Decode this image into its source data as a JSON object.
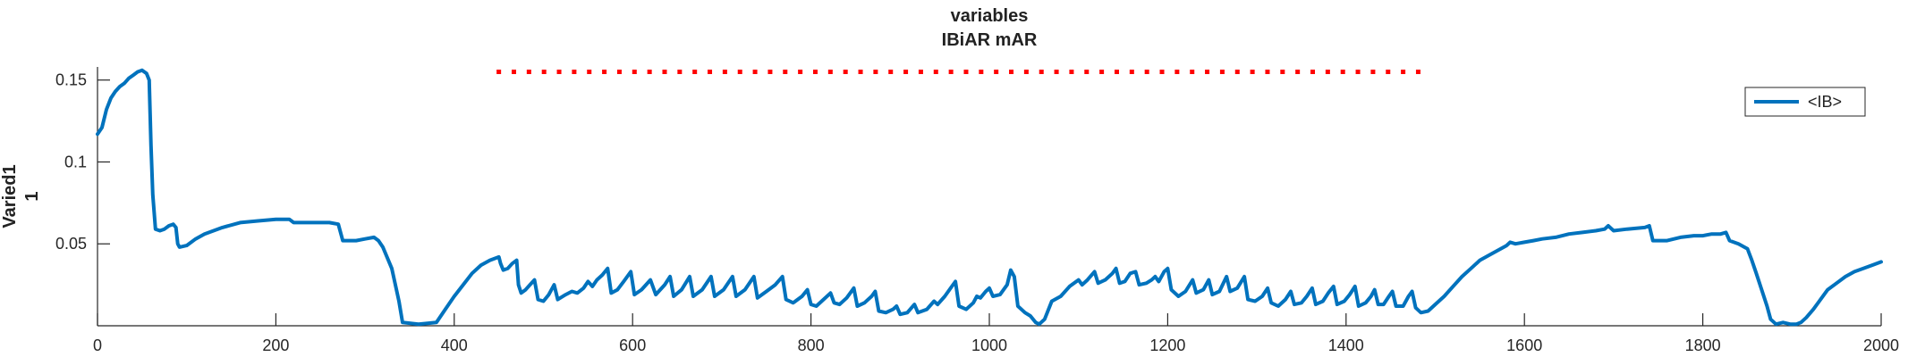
{
  "chart_data": {
    "type": "line",
    "title": [
      "variables",
      "IBiAR mAR"
    ],
    "xlabel": "",
    "ylabel": [
      "Varied1",
      "1"
    ],
    "xlim": [
      0,
      2000
    ],
    "ylim": [
      0,
      0.158
    ],
    "xticks": [
      0,
      200,
      400,
      600,
      800,
      1000,
      1200,
      1400,
      1600,
      1800,
      2000
    ],
    "xtick_labels": [
      "0",
      "200",
      "400",
      "600",
      "800",
      "1000",
      "1200",
      "1400",
      "1600",
      "1800",
      "2000"
    ],
    "yticks": [
      0.05,
      0.1,
      0.15
    ],
    "ytick_labels": [
      "0.05",
      "0.1",
      "0.15"
    ],
    "grid": false,
    "legend_position": "top-right",
    "series": [
      {
        "name": "<IB>",
        "color": "#0072BD",
        "points": [
          [
            0,
            0.117
          ],
          [
            5,
            0.121
          ],
          [
            10,
            0.132
          ],
          [
            15,
            0.139
          ],
          [
            20,
            0.143
          ],
          [
            25,
            0.146
          ],
          [
            30,
            0.148
          ],
          [
            35,
            0.151
          ],
          [
            40,
            0.153
          ],
          [
            45,
            0.155
          ],
          [
            50,
            0.156
          ],
          [
            55,
            0.154
          ],
          [
            58,
            0.15
          ],
          [
            60,
            0.11
          ],
          [
            62,
            0.08
          ],
          [
            65,
            0.059
          ],
          [
            70,
            0.058
          ],
          [
            75,
            0.059
          ],
          [
            80,
            0.061
          ],
          [
            85,
            0.062
          ],
          [
            88,
            0.06
          ],
          [
            90,
            0.05
          ],
          [
            92,
            0.048
          ],
          [
            100,
            0.049
          ],
          [
            110,
            0.053
          ],
          [
            120,
            0.056
          ],
          [
            140,
            0.06
          ],
          [
            160,
            0.063
          ],
          [
            180,
            0.064
          ],
          [
            200,
            0.065
          ],
          [
            215,
            0.065
          ],
          [
            220,
            0.063
          ],
          [
            240,
            0.063
          ],
          [
            260,
            0.063
          ],
          [
            270,
            0.062
          ],
          [
            275,
            0.052
          ],
          [
            290,
            0.052
          ],
          [
            300,
            0.053
          ],
          [
            310,
            0.054
          ],
          [
            315,
            0.052
          ],
          [
            320,
            0.048
          ],
          [
            330,
            0.035
          ],
          [
            338,
            0.015
          ],
          [
            342,
            0.002
          ],
          [
            360,
            0.001
          ],
          [
            380,
            0.002
          ],
          [
            390,
            0.01
          ],
          [
            400,
            0.018
          ],
          [
            410,
            0.025
          ],
          [
            420,
            0.032
          ],
          [
            430,
            0.037
          ],
          [
            440,
            0.04
          ],
          [
            450,
            0.042
          ],
          [
            452,
            0.038
          ],
          [
            455,
            0.034
          ],
          [
            460,
            0.035
          ],
          [
            465,
            0.038
          ],
          [
            470,
            0.04
          ],
          [
            472,
            0.025
          ],
          [
            475,
            0.02
          ],
          [
            480,
            0.022
          ],
          [
            485,
            0.025
          ],
          [
            490,
            0.028
          ],
          [
            494,
            0.016
          ],
          [
            500,
            0.015
          ],
          [
            506,
            0.019
          ],
          [
            512,
            0.025
          ],
          [
            516,
            0.016
          ],
          [
            525,
            0.019
          ],
          [
            532,
            0.021
          ],
          [
            538,
            0.02
          ],
          [
            545,
            0.023
          ],
          [
            550,
            0.027
          ],
          [
            555,
            0.024
          ],
          [
            560,
            0.028
          ],
          [
            566,
            0.031
          ],
          [
            572,
            0.035
          ],
          [
            576,
            0.02
          ],
          [
            583,
            0.022
          ],
          [
            590,
            0.027
          ],
          [
            598,
            0.033
          ],
          [
            602,
            0.019
          ],
          [
            610,
            0.022
          ],
          [
            620,
            0.028
          ],
          [
            626,
            0.019
          ],
          [
            636,
            0.025
          ],
          [
            642,
            0.03
          ],
          [
            646,
            0.018
          ],
          [
            655,
            0.022
          ],
          [
            664,
            0.03
          ],
          [
            668,
            0.018
          ],
          [
            678,
            0.022
          ],
          [
            688,
            0.03
          ],
          [
            692,
            0.018
          ],
          [
            702,
            0.022
          ],
          [
            712,
            0.03
          ],
          [
            716,
            0.018
          ],
          [
            726,
            0.022
          ],
          [
            736,
            0.03
          ],
          [
            740,
            0.017
          ],
          [
            750,
            0.021
          ],
          [
            760,
            0.025
          ],
          [
            768,
            0.03
          ],
          [
            772,
            0.016
          ],
          [
            780,
            0.014
          ],
          [
            790,
            0.018
          ],
          [
            796,
            0.022
          ],
          [
            800,
            0.013
          ],
          [
            806,
            0.012
          ],
          [
            814,
            0.016
          ],
          [
            822,
            0.02
          ],
          [
            826,
            0.014
          ],
          [
            832,
            0.013
          ],
          [
            840,
            0.017
          ],
          [
            848,
            0.023
          ],
          [
            852,
            0.012
          ],
          [
            860,
            0.014
          ],
          [
            868,
            0.018
          ],
          [
            872,
            0.021
          ],
          [
            876,
            0.009
          ],
          [
            884,
            0.008
          ],
          [
            892,
            0.01
          ],
          [
            896,
            0.012
          ],
          [
            900,
            0.007
          ],
          [
            908,
            0.008
          ],
          [
            916,
            0.013
          ],
          [
            920,
            0.008
          ],
          [
            930,
            0.01
          ],
          [
            938,
            0.015
          ],
          [
            942,
            0.013
          ],
          [
            950,
            0.018
          ],
          [
            958,
            0.024
          ],
          [
            962,
            0.027
          ],
          [
            966,
            0.012
          ],
          [
            974,
            0.01
          ],
          [
            982,
            0.014
          ],
          [
            986,
            0.018
          ],
          [
            990,
            0.017
          ],
          [
            996,
            0.021
          ],
          [
            1000,
            0.023
          ],
          [
            1004,
            0.018
          ],
          [
            1012,
            0.019
          ],
          [
            1020,
            0.025
          ],
          [
            1024,
            0.034
          ],
          [
            1028,
            0.03
          ],
          [
            1032,
            0.012
          ],
          [
            1040,
            0.008
          ],
          [
            1046,
            0.006
          ],
          [
            1052,
            0.002
          ],
          [
            1056,
            0.001
          ],
          [
            1062,
            0.004
          ],
          [
            1070,
            0.015
          ],
          [
            1080,
            0.018
          ],
          [
            1090,
            0.024
          ],
          [
            1100,
            0.028
          ],
          [
            1104,
            0.025
          ],
          [
            1110,
            0.028
          ],
          [
            1118,
            0.033
          ],
          [
            1122,
            0.026
          ],
          [
            1130,
            0.028
          ],
          [
            1138,
            0.032
          ],
          [
            1142,
            0.035
          ],
          [
            1146,
            0.026
          ],
          [
            1152,
            0.027
          ],
          [
            1158,
            0.032
          ],
          [
            1164,
            0.033
          ],
          [
            1168,
            0.025
          ],
          [
            1176,
            0.026
          ],
          [
            1182,
            0.028
          ],
          [
            1186,
            0.03
          ],
          [
            1190,
            0.027
          ],
          [
            1196,
            0.033
          ],
          [
            1200,
            0.035
          ],
          [
            1204,
            0.022
          ],
          [
            1212,
            0.018
          ],
          [
            1220,
            0.021
          ],
          [
            1228,
            0.028
          ],
          [
            1232,
            0.02
          ],
          [
            1240,
            0.022
          ],
          [
            1246,
            0.028
          ],
          [
            1250,
            0.019
          ],
          [
            1258,
            0.021
          ],
          [
            1266,
            0.03
          ],
          [
            1270,
            0.021
          ],
          [
            1278,
            0.023
          ],
          [
            1286,
            0.03
          ],
          [
            1290,
            0.016
          ],
          [
            1298,
            0.015
          ],
          [
            1306,
            0.018
          ],
          [
            1312,
            0.023
          ],
          [
            1316,
            0.014
          ],
          [
            1324,
            0.012
          ],
          [
            1332,
            0.016
          ],
          [
            1338,
            0.021
          ],
          [
            1342,
            0.013
          ],
          [
            1350,
            0.014
          ],
          [
            1356,
            0.018
          ],
          [
            1362,
            0.023
          ],
          [
            1366,
            0.013
          ],
          [
            1374,
            0.015
          ],
          [
            1380,
            0.02
          ],
          [
            1386,
            0.024
          ],
          [
            1390,
            0.013
          ],
          [
            1398,
            0.015
          ],
          [
            1404,
            0.019
          ],
          [
            1410,
            0.024
          ],
          [
            1414,
            0.012
          ],
          [
            1422,
            0.014
          ],
          [
            1428,
            0.018
          ],
          [
            1432,
            0.022
          ],
          [
            1436,
            0.013
          ],
          [
            1442,
            0.013
          ],
          [
            1448,
            0.018
          ],
          [
            1452,
            0.021
          ],
          [
            1456,
            0.012
          ],
          [
            1464,
            0.012
          ],
          [
            1470,
            0.018
          ],
          [
            1474,
            0.021
          ],
          [
            1478,
            0.011
          ],
          [
            1484,
            0.008
          ],
          [
            1492,
            0.009
          ],
          [
            1500,
            0.013
          ],
          [
            1510,
            0.018
          ],
          [
            1520,
            0.024
          ],
          [
            1530,
            0.03
          ],
          [
            1540,
            0.035
          ],
          [
            1550,
            0.04
          ],
          [
            1560,
            0.043
          ],
          [
            1570,
            0.046
          ],
          [
            1580,
            0.049
          ],
          [
            1584,
            0.051
          ],
          [
            1590,
            0.05
          ],
          [
            1600,
            0.051
          ],
          [
            1610,
            0.052
          ],
          [
            1620,
            0.053
          ],
          [
            1635,
            0.054
          ],
          [
            1650,
            0.056
          ],
          [
            1665,
            0.057
          ],
          [
            1680,
            0.058
          ],
          [
            1690,
            0.059
          ],
          [
            1694,
            0.061
          ],
          [
            1700,
            0.058
          ],
          [
            1715,
            0.059
          ],
          [
            1735,
            0.06
          ],
          [
            1740,
            0.061
          ],
          [
            1744,
            0.052
          ],
          [
            1760,
            0.052
          ],
          [
            1775,
            0.054
          ],
          [
            1790,
            0.055
          ],
          [
            1800,
            0.055
          ],
          [
            1810,
            0.056
          ],
          [
            1820,
            0.056
          ],
          [
            1826,
            0.057
          ],
          [
            1830,
            0.052
          ],
          [
            1840,
            0.05
          ],
          [
            1850,
            0.047
          ],
          [
            1855,
            0.04
          ],
          [
            1860,
            0.032
          ],
          [
            1866,
            0.022
          ],
          [
            1872,
            0.012
          ],
          [
            1876,
            0.004
          ],
          [
            1882,
            0.001
          ],
          [
            1890,
            0.002
          ],
          [
            1898,
            0.001
          ],
          [
            1905,
            0.001
          ],
          [
            1910,
            0.002
          ],
          [
            1916,
            0.005
          ],
          [
            1924,
            0.01
          ],
          [
            1932,
            0.016
          ],
          [
            1940,
            0.022
          ],
          [
            1950,
            0.026
          ],
          [
            1960,
            0.03
          ],
          [
            1970,
            0.033
          ],
          [
            1980,
            0.035
          ],
          [
            1990,
            0.037
          ],
          [
            2000,
            0.039
          ]
        ]
      }
    ],
    "marker_series": {
      "color": "#ff0000",
      "style": "dots",
      "y": 0.155,
      "x_start": 450,
      "x_end": 1482,
      "step": 16.9
    }
  }
}
